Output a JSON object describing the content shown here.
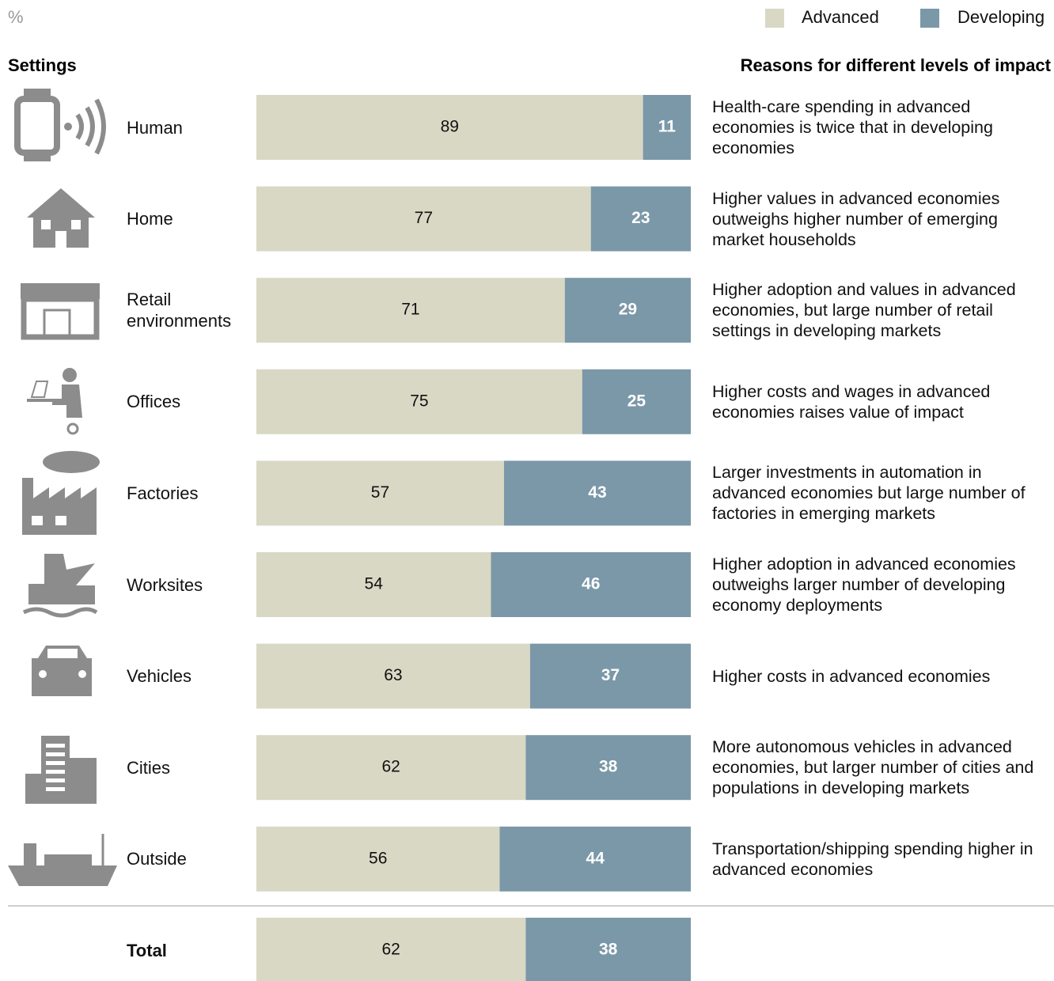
{
  "chart_data": {
    "type": "stacked_bar_horizontal",
    "unit_label": "%",
    "left_header": "Settings",
    "right_header": "Reasons for different levels of impact",
    "categories": [
      "Human",
      "Home",
      "Retail environments",
      "Offices",
      "Factories",
      "Worksites",
      "Vehicles",
      "Cities",
      "Outside",
      "Total"
    ],
    "series": [
      {
        "name": "Advanced",
        "color": "#d9d8c5",
        "values": [
          89,
          77,
          71,
          75,
          57,
          54,
          63,
          62,
          56,
          62
        ]
      },
      {
        "name": "Developing",
        "color": "#7b98a8",
        "values": [
          11,
          23,
          29,
          25,
          43,
          46,
          37,
          38,
          44,
          38
        ]
      }
    ],
    "annotations": [
      "Health-care spending in advanced economies is twice that in developing economies",
      "Higher values in advanced economies outweighs higher number of emerging market households",
      "Higher adoption and values in advanced economies, but large number of retail settings in developing markets",
      "Higher costs and wages in advanced economies raises value of impact",
      "Larger investments in automation in advanced economies  but large number of factories in emerging markets",
      "Higher adoption in advanced economies outweighs larger number of developing economy deployments",
      "Higher costs in advanced economies",
      "More autonomous vehicles in advanced economies, but larger number of cities and populations in developing markets",
      "Transportation/shipping spending higher in advanced economies"
    ],
    "xlim": [
      0,
      100
    ]
  }
}
